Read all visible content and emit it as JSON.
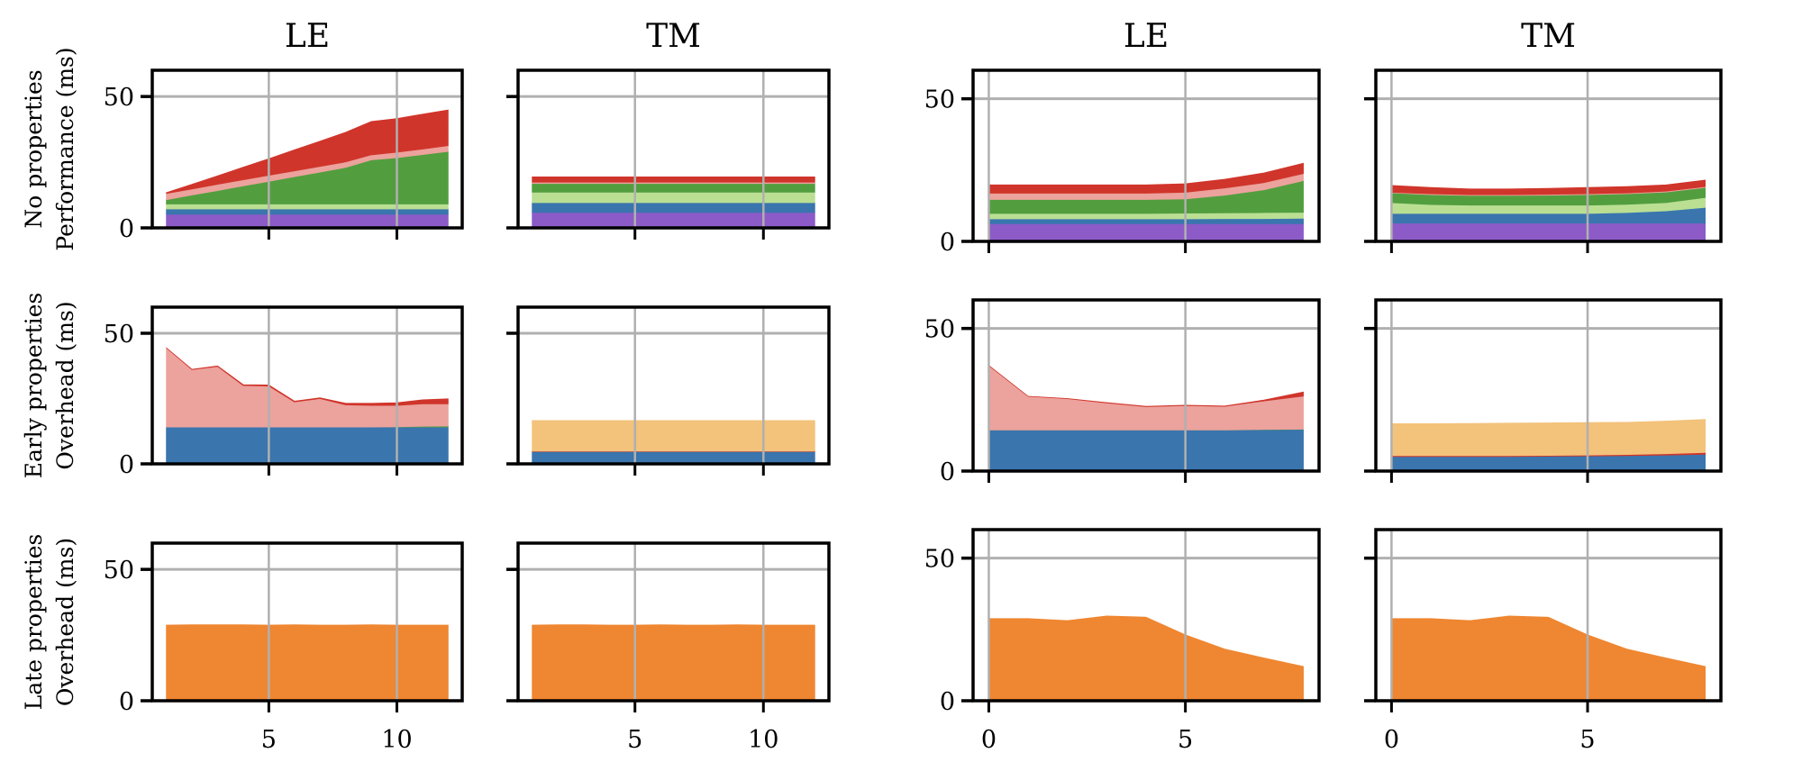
{
  "row_labels": [
    [
      "No properties",
      "Performance (ms)"
    ],
    [
      "Early properties",
      "Overhead (ms)"
    ],
    [
      "Late properties",
      "Overhead (ms)"
    ]
  ],
  "colors": {
    "purple": "#8c5bc8",
    "blue": "#3a75ae",
    "light_green": "#badf93",
    "green": "#529e3f",
    "pink": "#eca29d",
    "red": "#d0352b",
    "orange": "#ef8631",
    "light_orange": "#f3c27b",
    "grid": "#b0b0b0"
  },
  "chart_data": [
    {
      "type": "area",
      "stacked": true,
      "title": "LE",
      "grid": true,
      "xlim": [
        0.45,
        12.55
      ],
      "ylim": [
        0,
        60
      ],
      "xticks": [
        5,
        10
      ],
      "yticks": [
        0,
        50
      ],
      "ytick_labels": [
        "0",
        "50"
      ],
      "x": [
        1,
        2,
        3,
        4,
        5,
        6,
        7,
        8,
        9,
        10,
        11,
        12
      ],
      "series": [
        {
          "color": "#8c5bc8",
          "values": [
            5.2,
            5.2,
            5.2,
            5.2,
            5.2,
            5.2,
            5.2,
            5.2,
            5.2,
            5.2,
            5.2,
            5.2
          ]
        },
        {
          "color": "#3a75ae",
          "values": [
            2.0,
            2.0,
            2.0,
            2.0,
            2.0,
            2.0,
            2.0,
            2.0,
            2.0,
            2.0,
            2.0,
            2.0
          ]
        },
        {
          "color": "#badf93",
          "values": [
            1.9,
            1.9,
            1.9,
            1.9,
            1.9,
            1.9,
            1.9,
            1.9,
            1.9,
            1.9,
            1.9,
            1.9
          ]
        },
        {
          "color": "#529e3f",
          "values": [
            1.6,
            3.4,
            5.1,
            6.9,
            8.6,
            10.4,
            12.1,
            13.9,
            16.8,
            17.6,
            18.8,
            20.0
          ]
        },
        {
          "color": "#eca29d",
          "values": [
            2.4,
            2.3,
            2.4,
            2.3,
            2.3,
            2.2,
            2.2,
            2.1,
            1.9,
            2.1,
            2.1,
            2.2
          ]
        },
        {
          "color": "#d0352b",
          "values": [
            0.3,
            1.8,
            3.2,
            4.8,
            6.3,
            8.0,
            9.6,
            11.3,
            12.7,
            12.8,
            13.3,
            13.6
          ]
        }
      ]
    },
    {
      "type": "area",
      "stacked": true,
      "title": "TM",
      "grid": true,
      "xlim": [
        0.45,
        12.55
      ],
      "ylim": [
        0,
        60
      ],
      "xticks": [
        5,
        10
      ],
      "yticks": [
        0,
        50
      ],
      "x": [
        1,
        2,
        3,
        4,
        5,
        6,
        7,
        8,
        9,
        10,
        11,
        12
      ],
      "series": [
        {
          "color": "#8c5bc8",
          "values": [
            5.9,
            5.9,
            5.9,
            5.9,
            5.9,
            5.9,
            5.9,
            5.9,
            5.9,
            5.9,
            5.9,
            5.9
          ]
        },
        {
          "color": "#3a75ae",
          "values": [
            3.7,
            3.7,
            3.7,
            3.7,
            3.7,
            3.7,
            3.7,
            3.7,
            3.7,
            3.7,
            3.7,
            3.7
          ]
        },
        {
          "color": "#badf93",
          "values": [
            4.0,
            4.0,
            4.0,
            4.0,
            4.0,
            4.0,
            4.0,
            4.0,
            4.0,
            4.0,
            4.0,
            4.0
          ]
        },
        {
          "color": "#529e3f",
          "values": [
            3.3,
            3.3,
            3.3,
            3.3,
            3.3,
            3.3,
            3.3,
            3.3,
            3.3,
            3.3,
            3.3,
            3.3
          ]
        },
        {
          "color": "#eca29d",
          "values": [
            0.5,
            0.5,
            0.5,
            0.5,
            0.5,
            0.5,
            0.5,
            0.5,
            0.5,
            0.5,
            0.5,
            0.5
          ]
        },
        {
          "color": "#d0352b",
          "values": [
            2.0,
            2.0,
            2.0,
            2.0,
            2.0,
            2.0,
            2.0,
            2.0,
            2.0,
            2.0,
            2.0,
            2.0
          ]
        }
      ]
    },
    {
      "type": "area",
      "stacked": true,
      "title": "LE",
      "grid": true,
      "xlim": [
        -0.4,
        8.4
      ],
      "ylim": [
        0,
        60
      ],
      "xticks": [
        0,
        5
      ],
      "yticks": [
        0,
        50
      ],
      "ytick_labels": [
        "0",
        "50"
      ],
      "x": [
        0,
        1,
        2,
        3,
        4,
        5,
        6,
        7,
        8
      ],
      "series": [
        {
          "color": "#8c5bc8",
          "values": [
            6.2,
            6.2,
            6.2,
            6.2,
            6.2,
            6.2,
            6.2,
            6.2,
            6.2
          ]
        },
        {
          "color": "#3a75ae",
          "values": [
            1.7,
            1.7,
            1.7,
            1.7,
            1.7,
            1.7,
            1.8,
            1.8,
            1.9
          ]
        },
        {
          "color": "#badf93",
          "values": [
            1.9,
            1.9,
            1.9,
            1.9,
            1.9,
            2.0,
            2.0,
            2.1,
            2.1
          ]
        },
        {
          "color": "#529e3f",
          "values": [
            4.9,
            4.9,
            4.9,
            4.9,
            4.9,
            5.0,
            6.2,
            8.0,
            11.1
          ]
        },
        {
          "color": "#eca29d",
          "values": [
            2.2,
            2.2,
            2.2,
            2.2,
            2.2,
            2.3,
            2.5,
            2.5,
            2.5
          ]
        },
        {
          "color": "#d0352b",
          "values": [
            2.9,
            2.9,
            2.9,
            2.9,
            2.9,
            3.0,
            3.1,
            3.4,
            3.6
          ]
        }
      ]
    },
    {
      "type": "area",
      "stacked": true,
      "title": "TM",
      "grid": true,
      "xlim": [
        -0.4,
        8.4
      ],
      "ylim": [
        0,
        60
      ],
      "xticks": [
        0,
        5
      ],
      "yticks": [
        0,
        50
      ],
      "x": [
        0,
        1,
        2,
        3,
        4,
        5,
        6,
        7,
        8
      ],
      "series": [
        {
          "color": "#8c5bc8",
          "values": [
            6.4,
            6.4,
            6.4,
            6.4,
            6.4,
            6.4,
            6.4,
            6.4,
            6.4
          ]
        },
        {
          "color": "#3a75ae",
          "values": [
            3.4,
            3.4,
            3.4,
            3.4,
            3.4,
            3.4,
            3.7,
            4.3,
            5.5
          ]
        },
        {
          "color": "#badf93",
          "values": [
            3.8,
            3.1,
            2.9,
            2.9,
            2.9,
            2.9,
            2.9,
            2.9,
            3.5
          ]
        },
        {
          "color": "#529e3f",
          "values": [
            3.4,
            3.5,
            3.4,
            3.4,
            3.5,
            3.7,
            3.7,
            3.7,
            3.5
          ]
        },
        {
          "color": "#eca29d",
          "values": [
            0.2,
            0.3,
            0.3,
            0.3,
            0.3,
            0.3,
            0.3,
            0.3,
            0.3
          ]
        },
        {
          "color": "#d0352b",
          "values": [
            2.4,
            2.2,
            2.0,
            2.0,
            2.1,
            2.2,
            2.2,
            2.2,
            2.3
          ]
        }
      ]
    },
    {
      "type": "area",
      "stacked": true,
      "grid": true,
      "xlim": [
        0.45,
        12.55
      ],
      "ylim": [
        0,
        60
      ],
      "xticks": [
        5,
        10
      ],
      "yticks": [
        0,
        50
      ],
      "ytick_labels": [
        "0",
        "50"
      ],
      "x": [
        1,
        2,
        3,
        4,
        5,
        6,
        7,
        8,
        9,
        10,
        11,
        12
      ],
      "series": [
        {
          "color": "#3a75ae",
          "values": [
            14.1,
            14.1,
            14.1,
            14.1,
            14.1,
            14.1,
            14.1,
            14.1,
            14.1,
            14.1,
            14.1,
            14.1
          ]
        },
        {
          "color": "#529e3f",
          "values": [
            0,
            0,
            0,
            0,
            0,
            0,
            0,
            0,
            0,
            0.1,
            0.3,
            0.4
          ]
        },
        {
          "color": "#eca29d",
          "values": [
            30.3,
            22.0,
            23.2,
            15.9,
            15.7,
            9.6,
            10.9,
            8.5,
            8.3,
            8.2,
            8.6,
            8.5
          ]
        },
        {
          "color": "#d0352b",
          "values": [
            0,
            0.1,
            0.2,
            0.3,
            0.4,
            0.3,
            0.3,
            0.6,
            0.8,
            1.0,
            1.5,
            1.9
          ]
        }
      ]
    },
    {
      "type": "area",
      "stacked": true,
      "grid": true,
      "xlim": [
        0.45,
        12.55
      ],
      "ylim": [
        0,
        60
      ],
      "xticks": [
        5,
        10
      ],
      "yticks": [
        0,
        50
      ],
      "x": [
        1,
        2,
        3,
        4,
        5,
        6,
        7,
        8,
        9,
        10,
        11,
        12
      ],
      "series": [
        {
          "color": "#3a75ae",
          "values": [
            4.7,
            4.7,
            4.7,
            4.7,
            4.7,
            4.7,
            4.7,
            4.7,
            4.7,
            4.7,
            4.7,
            4.7
          ]
        },
        {
          "color": "#d0352b",
          "values": [
            0.2,
            0.2,
            0.2,
            0.2,
            0.2,
            0.2,
            0.2,
            0.2,
            0.2,
            0.2,
            0.2,
            0.2
          ]
        },
        {
          "color": "#f3c27b",
          "values": [
            11.7,
            11.7,
            11.7,
            11.7,
            11.7,
            11.7,
            11.7,
            11.7,
            11.7,
            11.7,
            11.7,
            11.7
          ]
        }
      ]
    },
    {
      "type": "area",
      "stacked": true,
      "grid": true,
      "xlim": [
        -0.4,
        8.4
      ],
      "ylim": [
        0,
        60
      ],
      "xticks": [
        0,
        5
      ],
      "yticks": [
        0,
        50
      ],
      "ytick_labels": [
        "0",
        "50"
      ],
      "x": [
        0,
        1,
        2,
        3,
        4,
        5,
        6,
        7,
        8
      ],
      "series": [
        {
          "color": "#3a75ae",
          "values": [
            14.4,
            14.4,
            14.4,
            14.4,
            14.4,
            14.4,
            14.4,
            14.5,
            14.6
          ]
        },
        {
          "color": "#529e3f",
          "values": [
            0,
            0,
            0,
            0,
            0,
            0,
            0,
            0.1,
            0.1
          ]
        },
        {
          "color": "#eca29d",
          "values": [
            22.6,
            11.8,
            11.0,
            9.5,
            8.2,
            8.6,
            8.3,
            10.0,
            11.6
          ]
        },
        {
          "color": "#d0352b",
          "values": [
            0,
            0,
            0,
            0.1,
            0.1,
            0.1,
            0.1,
            0.3,
            1.4
          ]
        }
      ]
    },
    {
      "type": "area",
      "stacked": true,
      "grid": true,
      "xlim": [
        -0.4,
        8.4
      ],
      "ylim": [
        0,
        60
      ],
      "xticks": [
        0,
        5
      ],
      "yticks": [
        0,
        50
      ],
      "x": [
        0,
        1,
        2,
        3,
        4,
        5,
        6,
        7,
        8
      ],
      "series": [
        {
          "color": "#3a75ae",
          "values": [
            5.1,
            5.1,
            5.1,
            5.1,
            5.2,
            5.3,
            5.4,
            5.6,
            5.9
          ]
        },
        {
          "color": "#d0352b",
          "values": [
            0.3,
            0.3,
            0.3,
            0.3,
            0.3,
            0.3,
            0.4,
            0.5,
            0.6
          ]
        },
        {
          "color": "#f3c27b",
          "values": [
            11.2,
            11.2,
            11.3,
            11.4,
            11.4,
            11.4,
            11.3,
            11.4,
            11.6
          ]
        }
      ]
    },
    {
      "type": "area",
      "stacked": true,
      "grid": true,
      "xlim": [
        0.45,
        12.55
      ],
      "ylim": [
        0,
        60
      ],
      "xticks": [
        5,
        10
      ],
      "xtick_labels": [
        "5",
        "10"
      ],
      "yticks": [
        0,
        50
      ],
      "ytick_labels": [
        "0",
        "50"
      ],
      "x": [
        1,
        2,
        3,
        4,
        5,
        6,
        7,
        8,
        9,
        10,
        11,
        12
      ],
      "series": [
        {
          "color": "#ef8631",
          "values": [
            28.8,
            28.9,
            28.9,
            28.9,
            28.8,
            28.9,
            28.8,
            28.8,
            28.9,
            28.8,
            28.8,
            28.8
          ]
        }
      ]
    },
    {
      "type": "area",
      "stacked": true,
      "grid": true,
      "xlim": [
        0.45,
        12.55
      ],
      "ylim": [
        0,
        60
      ],
      "xticks": [
        5,
        10
      ],
      "xtick_labels": [
        "5",
        "10"
      ],
      "yticks": [
        0,
        50
      ],
      "x": [
        1,
        2,
        3,
        4,
        5,
        6,
        7,
        8,
        9,
        10,
        11,
        12
      ],
      "series": [
        {
          "color": "#ef8631",
          "values": [
            28.8,
            28.9,
            28.9,
            28.8,
            28.8,
            28.9,
            28.8,
            28.8,
            28.9,
            28.8,
            28.8,
            28.8
          ]
        }
      ]
    },
    {
      "type": "area",
      "stacked": true,
      "grid": true,
      "xlim": [
        -0.4,
        8.4
      ],
      "ylim": [
        0,
        60
      ],
      "xticks": [
        0,
        5
      ],
      "xtick_labels": [
        "0",
        "5"
      ],
      "yticks": [
        0,
        50
      ],
      "ytick_labels": [
        "0",
        "50"
      ],
      "x": [
        0,
        1,
        2,
        3,
        4,
        5,
        6,
        7,
        8
      ],
      "series": [
        {
          "color": "#ef8631",
          "values": [
            28.8,
            28.8,
            28.1,
            29.7,
            29.3,
            23.1,
            18.1,
            15.0,
            12.0
          ]
        }
      ]
    },
    {
      "type": "area",
      "stacked": true,
      "grid": true,
      "xlim": [
        -0.4,
        8.4
      ],
      "ylim": [
        0,
        60
      ],
      "xticks": [
        0,
        5
      ],
      "xtick_labels": [
        "0",
        "5"
      ],
      "yticks": [
        0,
        50
      ],
      "x": [
        0,
        1,
        2,
        3,
        4,
        5,
        6,
        7,
        8
      ],
      "series": [
        {
          "color": "#ef8631",
          "values": [
            28.8,
            28.8,
            28.1,
            29.7,
            29.3,
            23.1,
            18.1,
            15.0,
            12.0
          ]
        }
      ]
    }
  ]
}
